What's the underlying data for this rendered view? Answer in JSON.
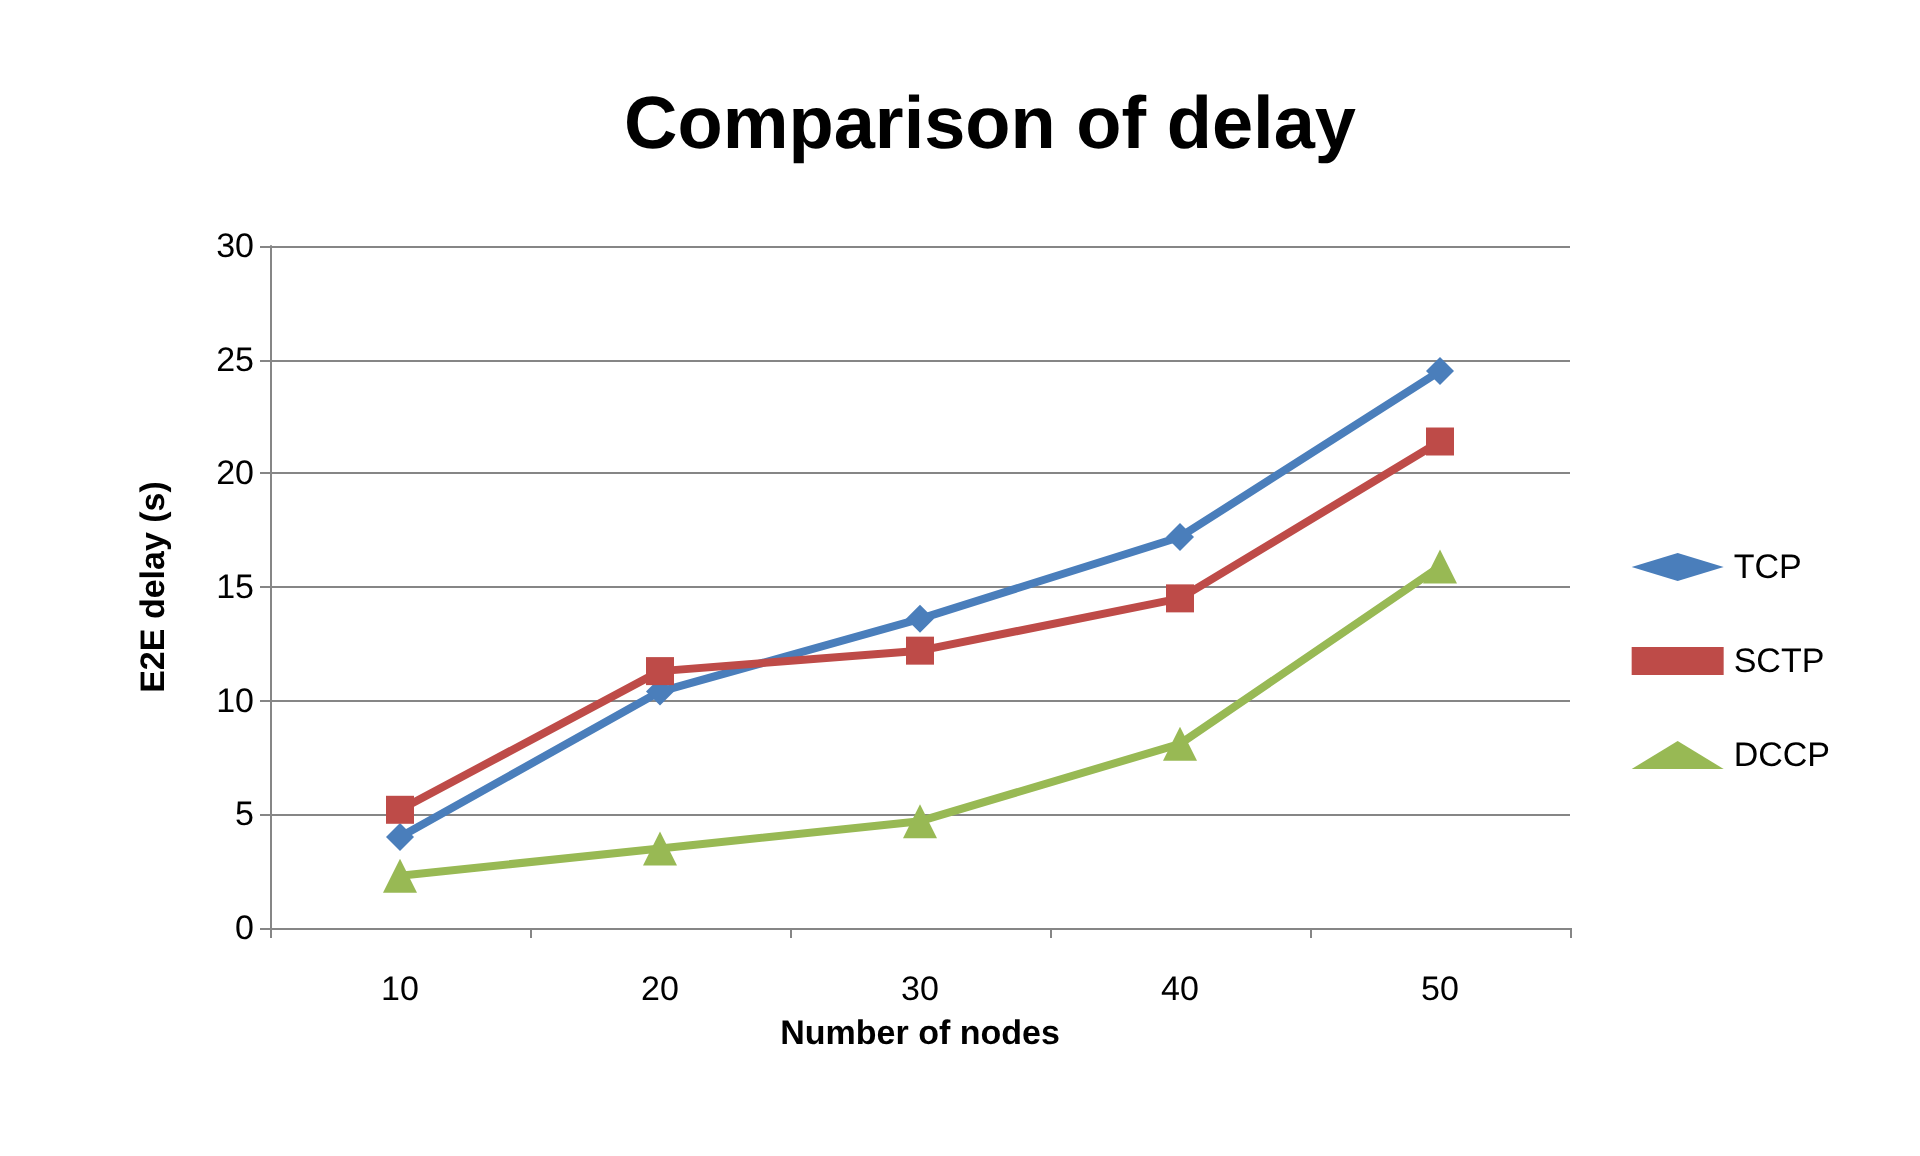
{
  "chart_data": {
    "type": "line",
    "title": "Comparison of delay",
    "xlabel": "Number of nodes",
    "ylabel": "E2E delay (s)",
    "categories": [
      "10",
      "20",
      "30",
      "40",
      "50"
    ],
    "series": [
      {
        "name": "TCP",
        "color": "#4a7ebb",
        "marker": "diamond",
        "values": [
          4,
          10.4,
          13.6,
          17.2,
          24.5
        ]
      },
      {
        "name": "SCTP",
        "color": "#be4b48",
        "marker": "square",
        "values": [
          5.2,
          11.3,
          12.2,
          14.5,
          21.4
        ]
      },
      {
        "name": "DCCP",
        "color": "#98b954",
        "marker": "triangle",
        "values": [
          2.3,
          3.5,
          4.7,
          8.1,
          15.9
        ]
      }
    ],
    "ylim": [
      0,
      30
    ],
    "yticks": [
      0,
      5,
      10,
      15,
      20,
      25,
      30
    ],
    "grid": "y",
    "legend": "right",
    "line_style": "solid"
  }
}
